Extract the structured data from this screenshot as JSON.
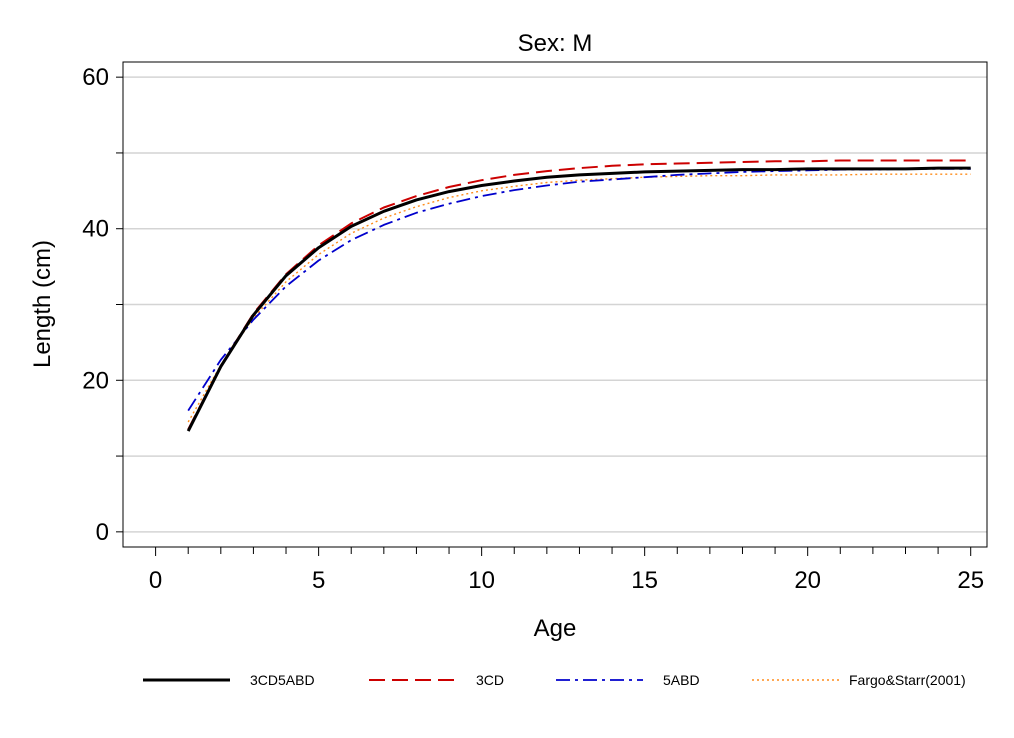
{
  "chart_data": {
    "type": "line",
    "title": "Sex: M",
    "xlabel": "Age",
    "ylabel": "Length (cm)",
    "xlim": [
      -1,
      25.5
    ],
    "ylim": [
      -2,
      62
    ],
    "xticks": [
      0,
      5,
      10,
      15,
      20,
      25
    ],
    "yticks": [
      0,
      20,
      40,
      60
    ],
    "grid": "horizontal",
    "legend_position": "bottom",
    "series": [
      {
        "name": "3CD5ABD",
        "color": "#000000",
        "style": "solid",
        "x": [
          1,
          2,
          3,
          4,
          5,
          6,
          7,
          8,
          9,
          10,
          11,
          12,
          13,
          14,
          15,
          16,
          17,
          18,
          19,
          20,
          21,
          22,
          23,
          24,
          25
        ],
        "y": [
          13.3,
          21.8,
          28.6,
          33.8,
          37.5,
          40.3,
          42.3,
          43.8,
          44.9,
          45.7,
          46.3,
          46.8,
          47.1,
          47.3,
          47.5,
          47.6,
          47.7,
          47.8,
          47.8,
          47.9,
          47.9,
          47.9,
          47.9,
          48.0,
          48.0
        ]
      },
      {
        "name": "3CD",
        "color": "#cc0000",
        "style": "dashed",
        "x": [
          1,
          2,
          3,
          4,
          5,
          6,
          7,
          8,
          9,
          10,
          11,
          12,
          13,
          14,
          15,
          16,
          17,
          18,
          19,
          20,
          21,
          22,
          23,
          24,
          25
        ],
        "y": [
          13.5,
          21.9,
          28.8,
          34.0,
          37.8,
          40.7,
          42.8,
          44.3,
          45.5,
          46.4,
          47.1,
          47.6,
          48.0,
          48.3,
          48.5,
          48.6,
          48.7,
          48.8,
          48.9,
          48.9,
          49.0,
          49.0,
          49.0,
          49.0,
          49.0
        ]
      },
      {
        "name": "5ABD",
        "color": "#0000cc",
        "style": "dashdot",
        "x": [
          1,
          2,
          3,
          4,
          5,
          6,
          7,
          8,
          9,
          10,
          11,
          12,
          13,
          14,
          15,
          16,
          17,
          18,
          19,
          20,
          21,
          22,
          23,
          24,
          25
        ],
        "y": [
          16.0,
          22.7,
          28.0,
          32.4,
          35.8,
          38.5,
          40.5,
          42.1,
          43.3,
          44.3,
          45.1,
          45.7,
          46.2,
          46.5,
          46.8,
          47.1,
          47.3,
          47.5,
          47.6,
          47.7,
          47.8,
          47.8,
          47.9,
          47.9,
          47.9
        ]
      },
      {
        "name": "Fargo&Starr(2001)",
        "color": "#ff8c1a",
        "style": "dotted",
        "x": [
          1,
          2,
          3,
          4,
          5,
          6,
          7,
          8,
          9,
          10,
          11,
          12,
          13,
          14,
          15,
          16,
          17,
          18,
          19,
          20,
          21,
          22,
          23,
          24,
          25
        ],
        "y": [
          14.5,
          22.0,
          28.2,
          33.0,
          36.6,
          39.4,
          41.4,
          42.9,
          44.1,
          45.0,
          45.6,
          46.1,
          46.4,
          46.6,
          46.8,
          46.9,
          47.0,
          47.0,
          47.1,
          47.1,
          47.1,
          47.2,
          47.2,
          47.2,
          47.2
        ]
      }
    ]
  }
}
